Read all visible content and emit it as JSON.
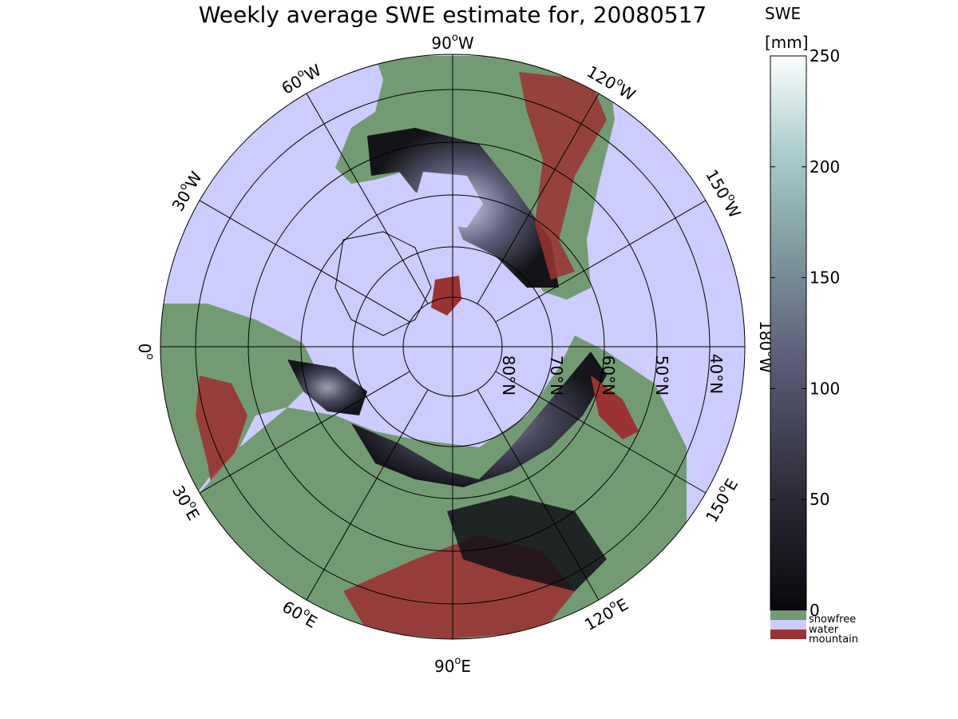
{
  "title": "Weekly average SWE estimate for, 20080517",
  "colorbar": {
    "label_line1": "SWE",
    "label_line2": "[mm]",
    "ticks": [
      "0",
      "50",
      "100",
      "150",
      "200",
      "250"
    ],
    "range": [
      0,
      250
    ],
    "categories": [
      {
        "label": "snowfree",
        "color": "#739b73"
      },
      {
        "label": "water",
        "color": "#ccccff"
      },
      {
        "label": "mountain",
        "color": "#9b3333"
      }
    ]
  },
  "map": {
    "projection": "north-polar-stereographic",
    "latitude_circles": [
      {
        "lat": 80,
        "label": "80°N"
      },
      {
        "lat": 70,
        "label": "70°N"
      },
      {
        "lat": 60,
        "label": "60°N"
      },
      {
        "lat": 50,
        "label": "50°N"
      },
      {
        "lat": 40,
        "label": "40°N"
      }
    ],
    "meridians": [
      {
        "lon_label": "90°W",
        "sup": "o",
        "base": "90",
        "dir": "W"
      },
      {
        "lon_label": "120°W",
        "sup": "o",
        "base": "120",
        "dir": "W"
      },
      {
        "lon_label": "150°W",
        "sup": "o",
        "base": "150",
        "dir": "W"
      },
      {
        "lon_label": "180°W",
        "sup": "o",
        "base": "180",
        "dir": "W"
      },
      {
        "lon_label": "150°E",
        "sup": "o",
        "base": "150",
        "dir": "E"
      },
      {
        "lon_label": "120°E",
        "sup": "o",
        "base": "120",
        "dir": "E"
      },
      {
        "lon_label": "90°E",
        "sup": "o",
        "base": "90",
        "dir": "E"
      },
      {
        "lon_label": "60°E",
        "sup": "o",
        "base": "60",
        "dir": "E"
      },
      {
        "lon_label": "30°E",
        "sup": "o",
        "base": "30",
        "dir": "E"
      },
      {
        "lon_label": "0°",
        "sup": "o",
        "base": "0",
        "dir": ""
      },
      {
        "lon_label": "30°W",
        "sup": "o",
        "base": "30",
        "dir": "W"
      },
      {
        "lon_label": "60°W",
        "sup": "o",
        "base": "60",
        "dir": "W"
      }
    ]
  },
  "colors": {
    "water": "#ccccff",
    "snowfree": "#739b73",
    "mountain": "#9b3333",
    "swe_low": "#0d0d12",
    "swe_mid": "#5a5a78",
    "swe_high": "#ffffff"
  }
}
